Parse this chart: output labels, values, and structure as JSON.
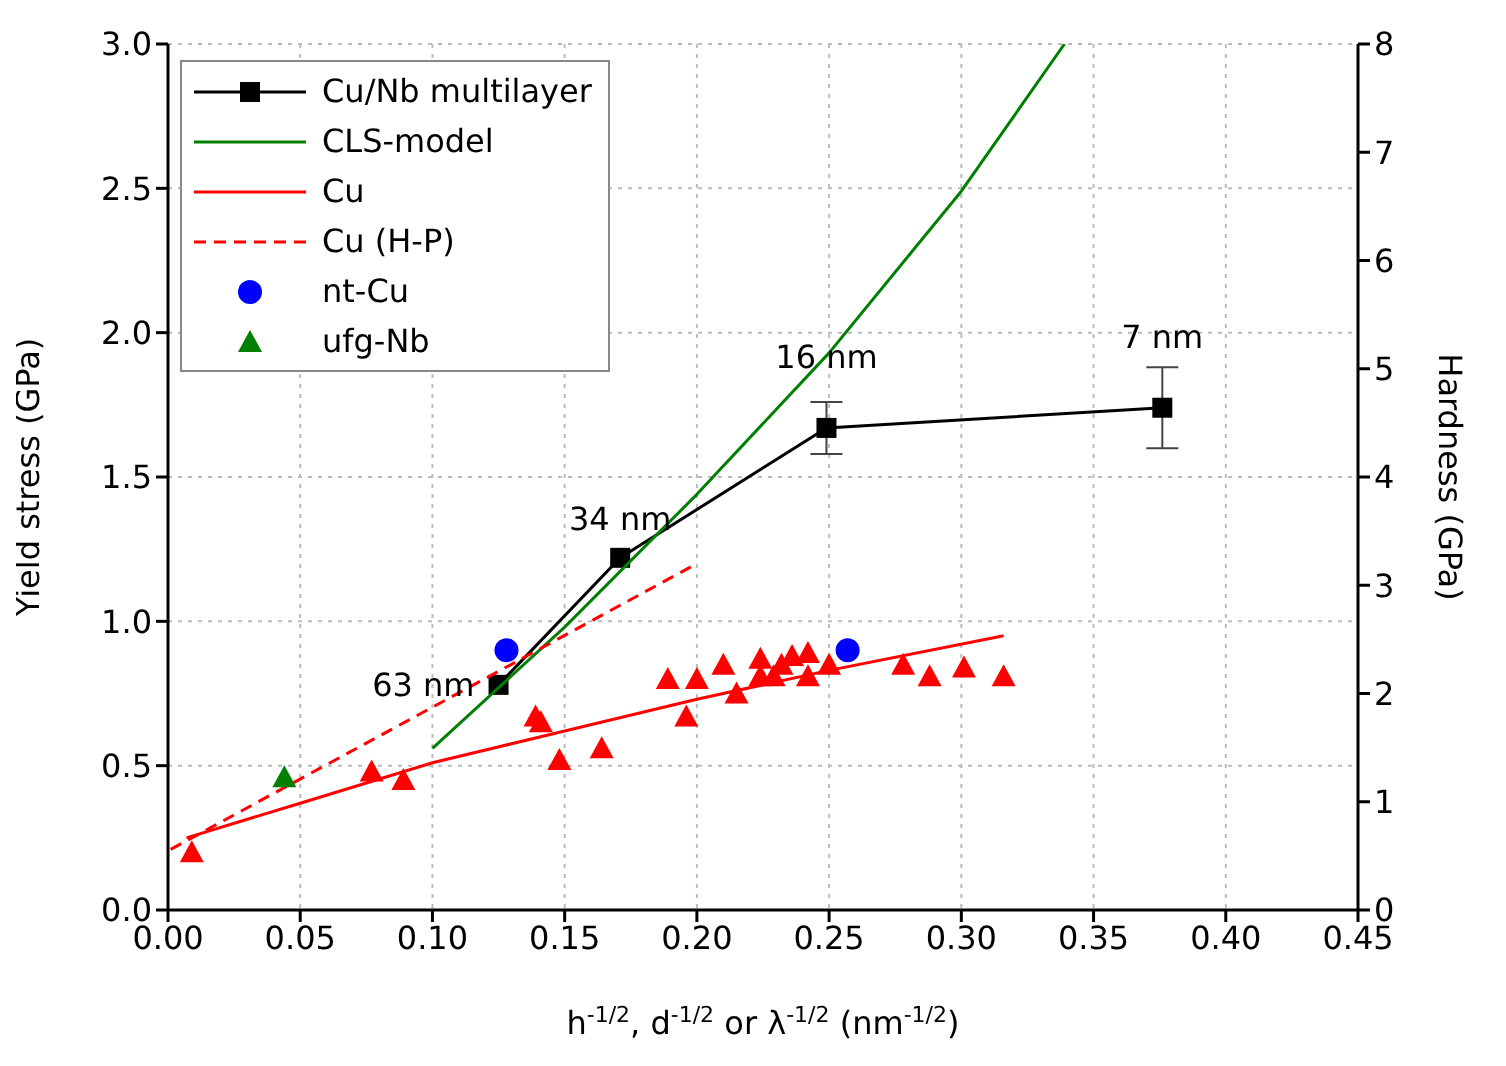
{
  "chart_data": {
    "type": "line",
    "xlabel": "h$^{-1/2}$, d$^{-1/2}$ or λ$^{-1/2}$ (nm$^{-1/2}$)",
    "ylabel": "Yield stress (GPa)",
    "y2label": "Hardness (GPa)",
    "xlim": [
      0,
      0.45
    ],
    "xticks": [
      {
        "value": 0,
        "label": "0.00"
      },
      {
        "value": 0.05,
        "label": "0.05"
      },
      {
        "value": 0.1,
        "label": "0.10"
      },
      {
        "value": 0.15,
        "label": "0.15"
      },
      {
        "value": 0.2,
        "label": "0.20"
      },
      {
        "value": 0.25,
        "label": "0.25"
      },
      {
        "value": 0.3,
        "label": "0.30"
      },
      {
        "value": 0.35,
        "label": "0.35"
      },
      {
        "value": 0.4,
        "label": "0.40"
      },
      {
        "value": 0.45,
        "label": "0.45"
      }
    ],
    "ylim": [
      0,
      3
    ],
    "yticks": [
      {
        "value": 0,
        "label": "0.0"
      },
      {
        "value": 0.5,
        "label": "0.5"
      },
      {
        "value": 1,
        "label": "1.0"
      },
      {
        "value": 1.5,
        "label": "1.5"
      },
      {
        "value": 2,
        "label": "2.0"
      },
      {
        "value": 2.5,
        "label": "2.5"
      },
      {
        "value": 3,
        "label": "3.0"
      }
    ],
    "y2lim": [
      0,
      8
    ],
    "y2ticks": [
      0,
      1,
      2,
      3,
      4,
      5,
      6,
      7,
      8
    ],
    "grid": true,
    "legend": "top left",
    "series": [
      {
        "name": "Cu/Nb multilayer",
        "type": "line",
        "color": "#000000",
        "marker": "square",
        "x": [
          0.125,
          0.171,
          0.249,
          0.376
        ],
        "values": [
          0.78,
          1.22,
          1.67,
          1.74
        ],
        "errors": [
          null,
          null,
          [
            1.58,
            1.76
          ],
          [
            1.6,
            1.88
          ]
        ]
      },
      {
        "name": "CLS-model",
        "type": "line",
        "color": "#008000",
        "marker": "none",
        "x": [
          0.1,
          0.15,
          0.2,
          0.25,
          0.3,
          0.339
        ],
        "values": [
          0.56,
          0.98,
          1.44,
          1.93,
          2.49,
          3.0
        ]
      },
      {
        "name": "Cu",
        "type": "line",
        "color": "#ff0000",
        "marker": "none",
        "x": [
          0.007,
          0.05,
          0.1,
          0.15,
          0.2,
          0.25,
          0.316
        ],
        "values": [
          0.25,
          0.37,
          0.51,
          0.62,
          0.73,
          0.83,
          0.95
        ]
      },
      {
        "name": "Cu (H-P)",
        "type": "line",
        "color": "#ff0000",
        "marker": "none",
        "line_style": "dashed",
        "x": [
          0.001,
          0.2
        ],
        "values": [
          0.21,
          1.2
        ]
      },
      {
        "name": "nt-Cu",
        "type": "scatter",
        "color": "#0000ff",
        "marker": "circle",
        "x": [
          0.128,
          0.257
        ],
        "values": [
          0.9,
          0.9
        ]
      },
      {
        "name": "ufg-Nb",
        "type": "scatter",
        "color": "#008000",
        "marker": "triangle",
        "x": [
          0.044
        ],
        "values": [
          0.46
        ]
      },
      {
        "type": "scatter",
        "color": "#ff0000",
        "marker": "triangle",
        "x": [
          0.009,
          0.077,
          0.089,
          0.139,
          0.141,
          0.148,
          0.164,
          0.189,
          0.196,
          0.2,
          0.21,
          0.215,
          0.224,
          0.224,
          0.229,
          0.232,
          0.236,
          0.242,
          0.242,
          0.25,
          0.278,
          0.288,
          0.301,
          0.316
        ],
        "values": [
          0.2,
          0.48,
          0.45,
          0.67,
          0.65,
          0.52,
          0.56,
          0.8,
          0.67,
          0.8,
          0.85,
          0.75,
          0.87,
          0.81,
          0.81,
          0.85,
          0.88,
          0.89,
          0.81,
          0.85,
          0.85,
          0.81,
          0.84,
          0.81
        ]
      }
    ],
    "annotations": [
      {
        "text": "63 nm",
        "x": 0.125,
        "y": 0.78
      },
      {
        "text": "34 nm",
        "x": 0.171,
        "y": 1.22
      },
      {
        "text": "16 nm",
        "x": 0.249,
        "y": 1.67
      },
      {
        "text": "7 nm",
        "x": 0.376,
        "y": 1.74
      }
    ]
  }
}
